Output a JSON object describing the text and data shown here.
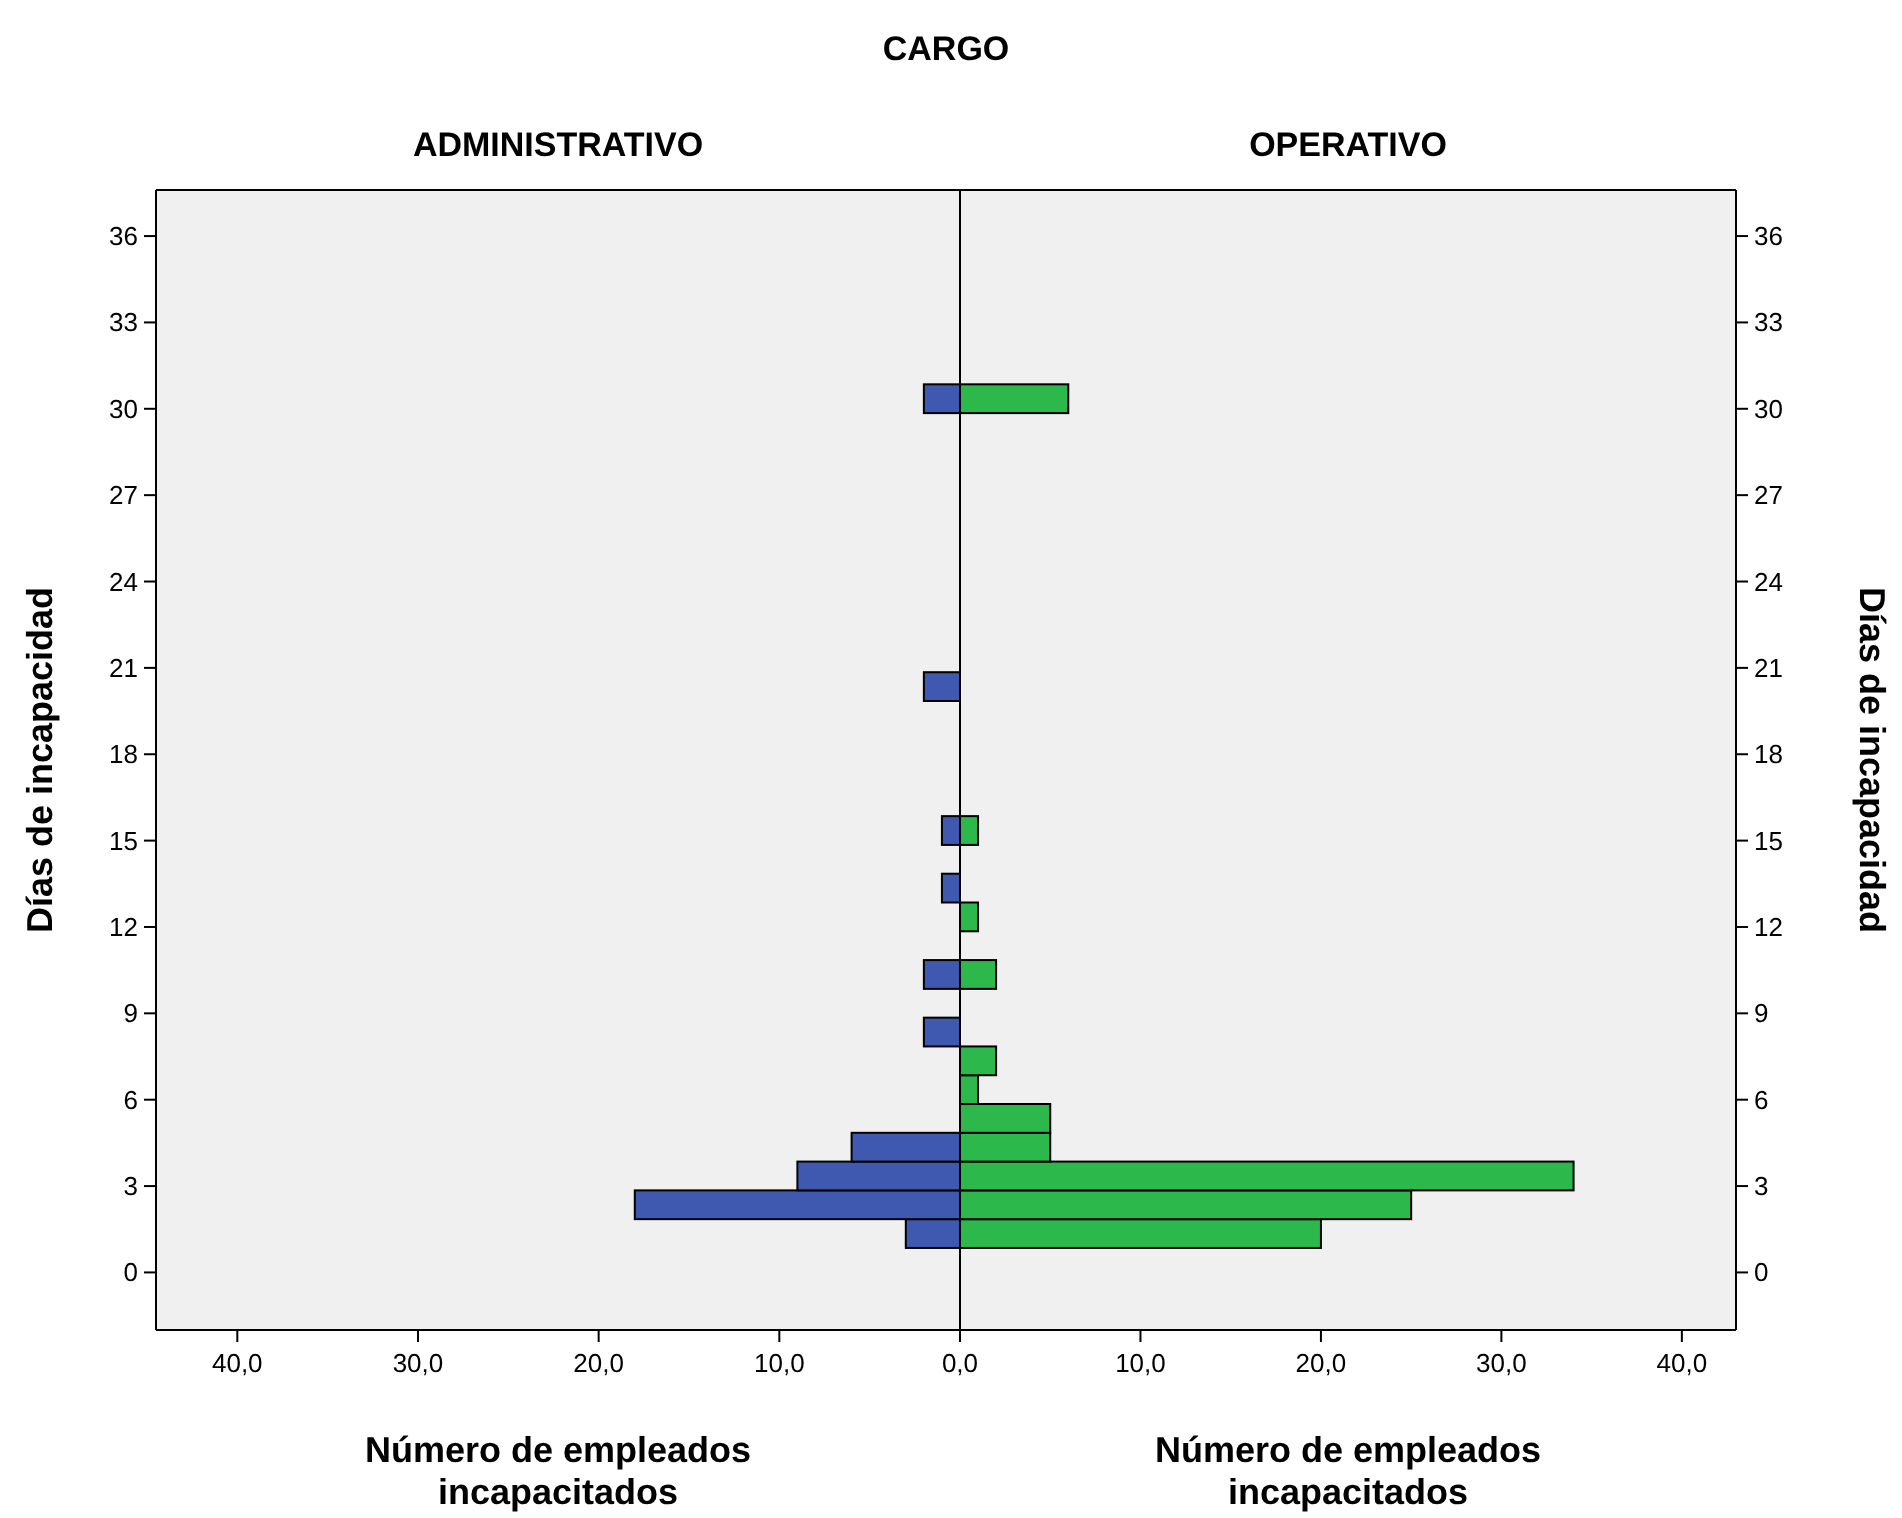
{
  "chart_data": [
    {
      "type": "histogram",
      "orientation": "horizontal",
      "title": "ADMINISTRATIVO",
      "annotations": [
        "CARGO"
      ],
      "xlabel": "Número de empleados incapacitados",
      "ylabel": "Días de incapacidad",
      "bins": [
        0.85,
        1.85,
        2.85,
        3.85,
        4.85,
        5.85,
        6.85,
        7.85,
        8.85,
        9.85,
        10.85,
        11.85,
        12.85,
        13.85,
        14.85,
        15.85,
        16.85,
        17.85,
        18.85,
        19.85,
        20.85,
        21.85,
        22.85,
        23.85,
        24.85,
        25.85,
        26.85,
        27.85,
        28.85,
        29.85,
        30.85
      ],
      "values": [
        3,
        18,
        9,
        6,
        0,
        0,
        0,
        2,
        0,
        2,
        0,
        0,
        1,
        0,
        1,
        0,
        0,
        0,
        0,
        2,
        0,
        0,
        0,
        0,
        0,
        0,
        0,
        0,
        0,
        2
      ],
      "color": "#3f58b0",
      "xlim": [
        44.5,
        0
      ],
      "xticks": [
        {
          "value": 40,
          "label": "40,0"
        },
        {
          "value": 30,
          "label": "30,0"
        },
        {
          "value": 20,
          "label": "20,0"
        },
        {
          "value": 10,
          "label": "10,0"
        },
        {
          "value": 0,
          "label": "0,0"
        }
      ],
      "ylim": [
        -2,
        37.6
      ],
      "yticks": [
        0,
        3,
        6,
        9,
        12,
        15,
        18,
        21,
        24,
        27,
        30,
        33,
        36
      ],
      "grid": false
    },
    {
      "type": "histogram",
      "orientation": "horizontal",
      "title": "OPERATIVO",
      "xlabel": "Número de empleados incapacitados",
      "ylabel": "Días de incapacidad",
      "bins": [
        0.85,
        1.85,
        2.85,
        3.85,
        4.85,
        5.85,
        6.85,
        7.85,
        8.85,
        9.85,
        10.85,
        11.85,
        12.85,
        13.85,
        14.85,
        15.85,
        16.85,
        17.85,
        18.85,
        19.85,
        20.85,
        21.85,
        22.85,
        23.85,
        24.85,
        25.85,
        26.85,
        27.85,
        28.85,
        29.85,
        30.85
      ],
      "values": [
        20,
        25,
        34,
        5,
        5,
        1,
        2,
        0,
        0,
        2,
        0,
        1,
        0,
        0,
        1,
        0,
        0,
        0,
        0,
        0,
        0,
        0,
        0,
        0,
        0,
        0,
        0,
        0,
        0,
        6
      ],
      "color": "#2db84b",
      "xlim": [
        0,
        43
      ],
      "xticks": [
        {
          "value": 0,
          "label": null
        },
        {
          "value": 10,
          "label": "10,0"
        },
        {
          "value": 20,
          "label": "20,0"
        },
        {
          "value": 30,
          "label": "30,0"
        },
        {
          "value": 40,
          "label": "40,0"
        }
      ],
      "ylim": [
        -2,
        37.6
      ],
      "yticks": [
        0,
        3,
        6,
        9,
        12,
        15,
        18,
        21,
        24,
        27,
        30,
        33,
        36
      ],
      "grid": false
    }
  ]
}
